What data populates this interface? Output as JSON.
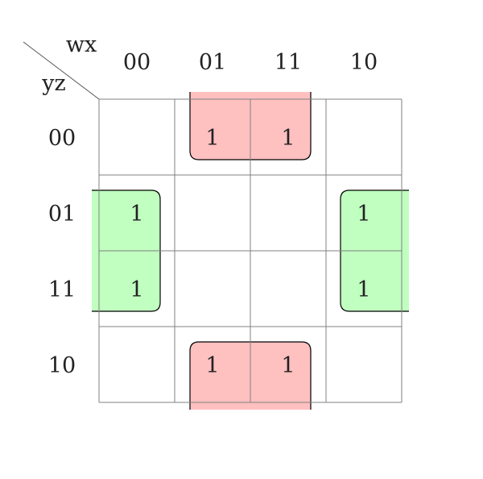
{
  "corner": {
    "top_label": "wx",
    "left_label": "yz"
  },
  "columns": [
    "00",
    "01",
    "11",
    "10"
  ],
  "rows": [
    "00",
    "01",
    "11",
    "10"
  ],
  "cells": [
    [
      "",
      "1",
      "1",
      ""
    ],
    [
      "1",
      "",
      "",
      "1"
    ],
    [
      "1",
      "",
      "",
      "1"
    ],
    [
      "",
      "1",
      "1",
      ""
    ]
  ],
  "colors": {
    "red_group_fill": "#ffc0c0",
    "green_group_fill": "#c0ffc0",
    "outline": "#000000",
    "grid": "#808080"
  },
  "groups": [
    {
      "color": "red",
      "rows": [
        "00",
        "10"
      ],
      "columns": [
        "01",
        "11"
      ]
    },
    {
      "color": "green",
      "rows": [
        "01",
        "11"
      ],
      "columns": [
        "00",
        "10"
      ]
    }
  ]
}
